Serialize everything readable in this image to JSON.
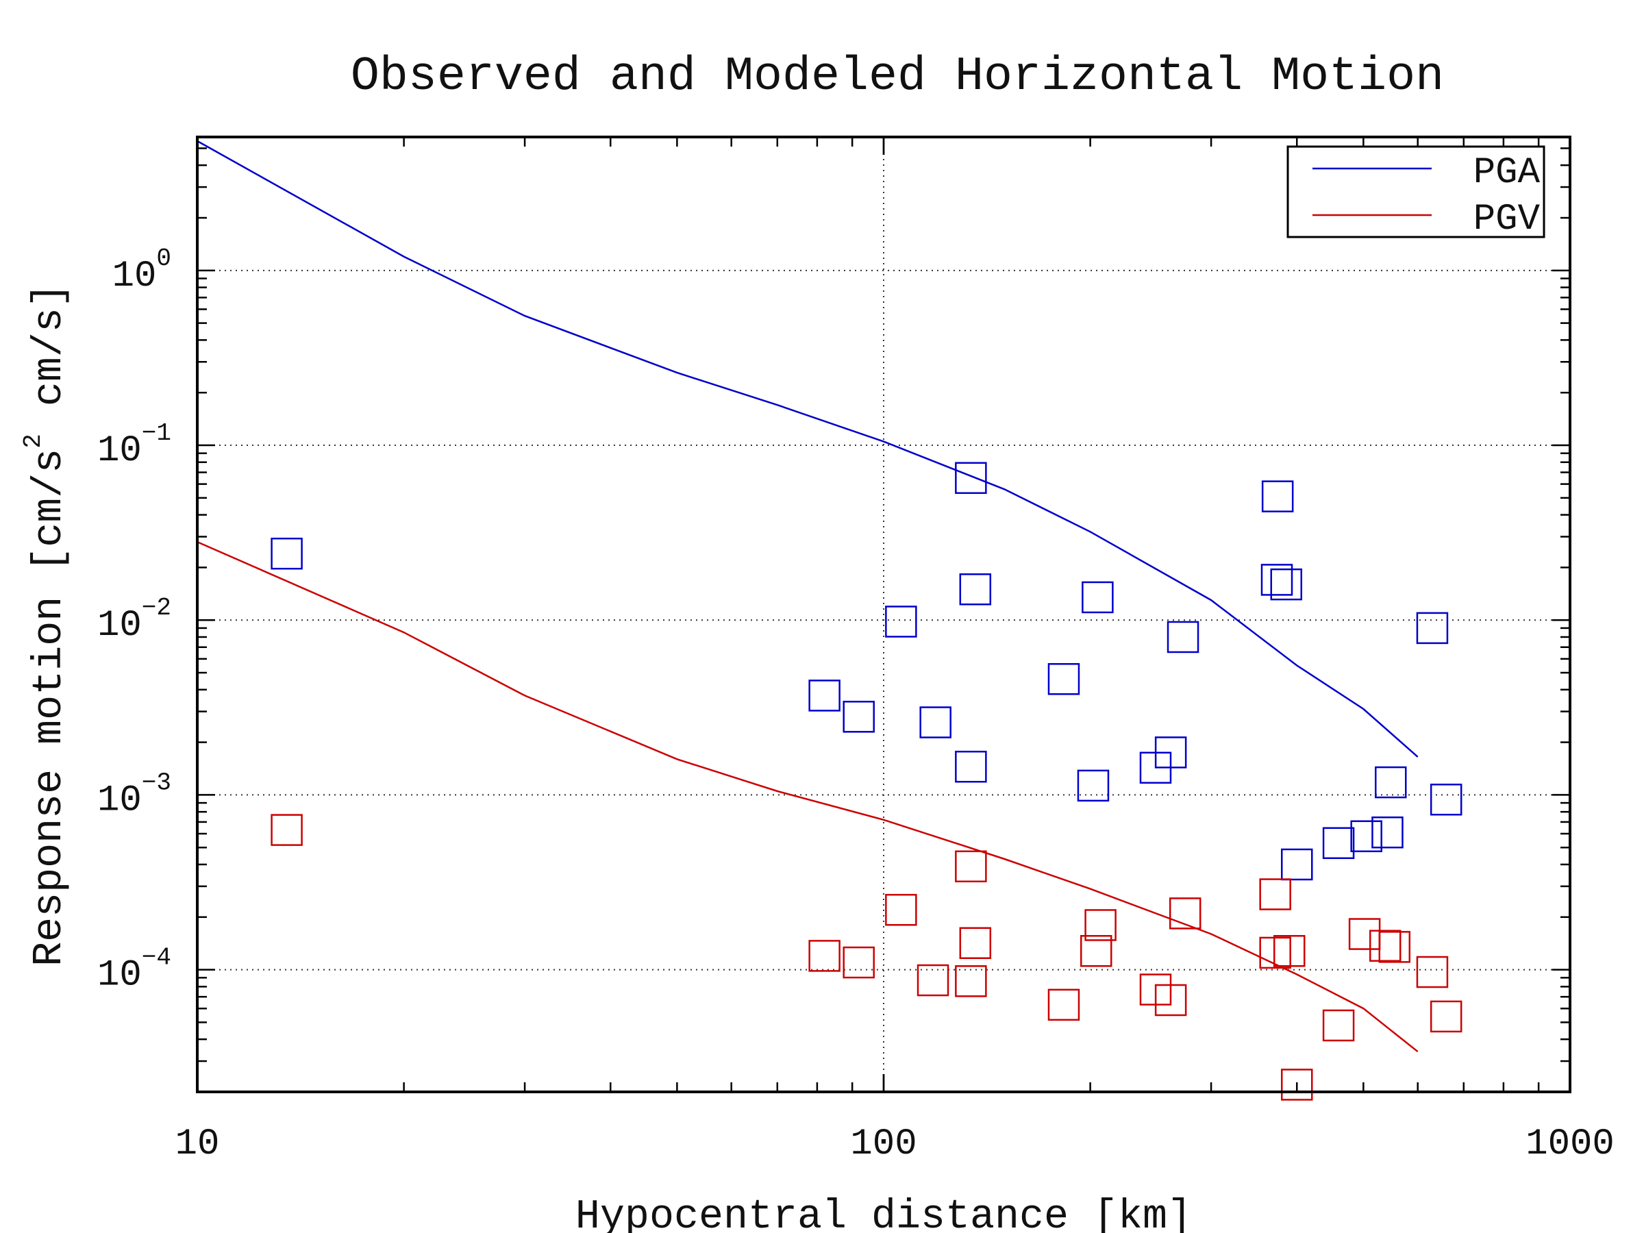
{
  "chart_data": {
    "type": "scatter",
    "title": "Observed and Modeled Horizontal Motion",
    "xlabel": "Hypocentral distance [km]",
    "ylabel": "Response motion [cm/s",
    "ylabel_exp": "2",
    "ylabel_tail": "cm/s]",
    "x_scale": "log",
    "y_scale": "log",
    "xlim": [
      10,
      1000
    ],
    "ylim": [
      2e-05,
      5.8
    ],
    "grid": "dotted at major ticks",
    "legend_position": "top-right",
    "x_ticks": [
      {
        "value": 10,
        "label": "10"
      },
      {
        "value": 100,
        "label": "100"
      },
      {
        "value": 1000,
        "label": "1000"
      }
    ],
    "y_ticks": [
      {
        "value": 1,
        "base": "10",
        "exp": "0"
      },
      {
        "value": 0.1,
        "base": "10",
        "exp": "−1"
      },
      {
        "value": 0.01,
        "base": "10",
        "exp": "−2"
      },
      {
        "value": 0.001,
        "base": "10",
        "exp": "−3"
      },
      {
        "value": 0.0001,
        "base": "10",
        "exp": "−4"
      }
    ],
    "series": [
      {
        "name": "PGA",
        "kind": "line",
        "color": "#0000cc",
        "x": [
          10,
          20,
          30,
          50,
          70,
          100,
          150,
          200,
          300,
          400,
          500,
          600
        ],
        "y": [
          5.5,
          1.2,
          0.55,
          0.26,
          0.17,
          0.105,
          0.056,
          0.032,
          0.013,
          0.0055,
          0.0031,
          0.00165
        ]
      },
      {
        "name": "PGV",
        "kind": "line",
        "color": "#cc0000",
        "x": [
          10,
          20,
          30,
          50,
          70,
          100,
          150,
          200,
          300,
          400,
          500,
          600
        ],
        "y": [
          0.028,
          0.0085,
          0.0037,
          0.0016,
          0.00105,
          0.00072,
          0.00043,
          0.00029,
          0.00016,
          9.4e-05,
          6e-05,
          3.4e-05
        ]
      },
      {
        "kind": "scatter",
        "marker": "square",
        "color": "#0000cc",
        "points": [
          [
            13.5,
            0.024
          ],
          [
            134,
            0.065
          ],
          [
            375,
            0.051
          ],
          [
            136,
            0.015
          ],
          [
            374,
            0.017
          ],
          [
            386,
            0.016
          ],
          [
            205,
            0.0135
          ],
          [
            106,
            0.0098
          ],
          [
            273,
            0.008
          ],
          [
            630,
            0.009
          ],
          [
            183,
            0.0046
          ],
          [
            82,
            0.0037
          ],
          [
            92,
            0.0028
          ],
          [
            119,
            0.0026
          ],
          [
            134,
            0.00145
          ],
          [
            262,
            0.00175
          ],
          [
            249,
            0.00143
          ],
          [
            202,
            0.00113
          ],
          [
            548,
            0.00118
          ],
          [
            660,
            0.00094
          ],
          [
            460,
            0.00053
          ],
          [
            505,
            0.00058
          ],
          [
            542,
            0.00061
          ],
          [
            400,
            0.0004
          ]
        ]
      },
      {
        "kind": "scatter",
        "marker": "square",
        "color": "#cc0000",
        "points": [
          [
            13.5,
            0.00063
          ],
          [
            134,
            0.00039
          ],
          [
            372,
            0.00027
          ],
          [
            106,
            0.00022
          ],
          [
            275,
            0.00021
          ],
          [
            207,
            0.00018
          ],
          [
            502,
            0.00016
          ],
          [
            136,
            0.000142
          ],
          [
            204,
            0.000128
          ],
          [
            372,
            0.000125
          ],
          [
            390,
            0.000128
          ],
          [
            538,
            0.000137
          ],
          [
            555,
            0.000135
          ],
          [
            82,
            0.00012
          ],
          [
            92,
            0.00011
          ],
          [
            630,
            9.7e-05
          ],
          [
            118,
            8.7e-05
          ],
          [
            134,
            8.6e-05
          ],
          [
            249,
            7.7e-05
          ],
          [
            262,
            6.7e-05
          ],
          [
            183,
            6.3e-05
          ],
          [
            460,
            4.8e-05
          ],
          [
            660,
            5.4e-05
          ],
          [
            400,
            2.2e-05
          ]
        ]
      }
    ]
  }
}
